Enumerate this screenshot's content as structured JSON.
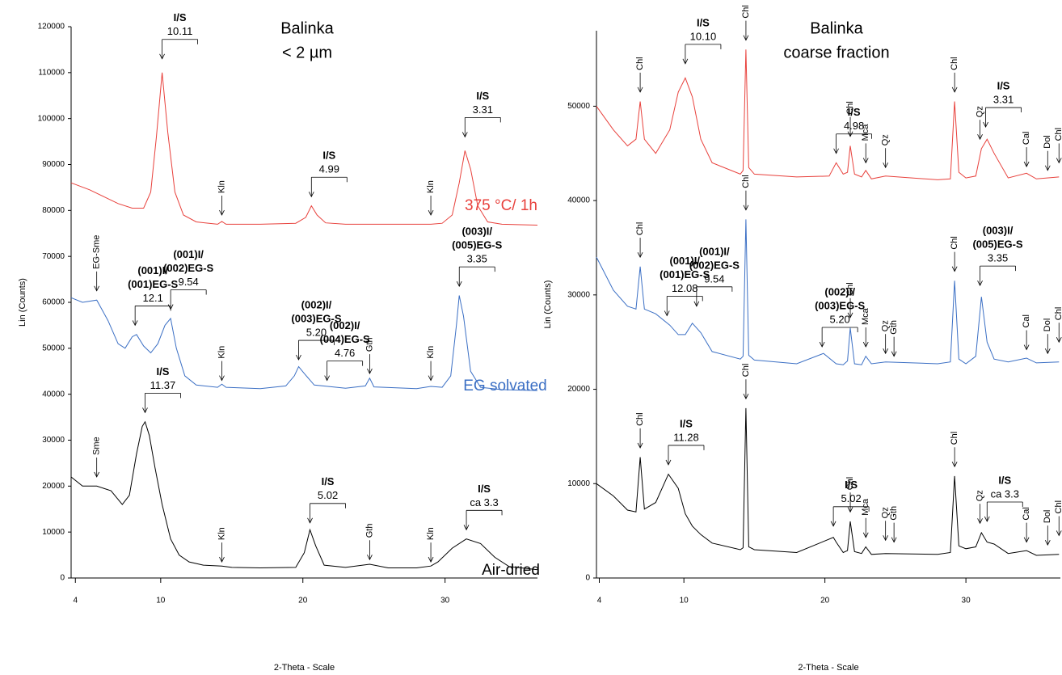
{
  "chart_data": [
    {
      "type": "line",
      "title": "Balinka",
      "subtitle": "< 2 µm",
      "xlabel": "2-Theta - Scale",
      "ylabel": "Lin (Counts)",
      "xlim": [
        3.7,
        36.5
      ],
      "ylim": [
        0,
        120000
      ],
      "xticks": [
        4,
        10,
        20,
        30
      ],
      "yticks": [
        0,
        10000,
        20000,
        30000,
        40000,
        50000,
        60000,
        70000,
        80000,
        90000,
        100000,
        110000,
        120000
      ],
      "series": [
        {
          "name": "375 °C/ 1h",
          "color": "#e8413c",
          "x": [
            3.7,
            5,
            6,
            7,
            8,
            8.8,
            9.3,
            9.7,
            10.1,
            10.5,
            11,
            11.6,
            12.5,
            14,
            14.3,
            14.6,
            17,
            19.5,
            20.2,
            20.6,
            21,
            21.6,
            23,
            26,
            29,
            29.8,
            30.5,
            31,
            31.4,
            31.8,
            32.3,
            33,
            34,
            36.5
          ],
          "values": [
            86000,
            84500,
            83000,
            81500,
            80500,
            80500,
            84000,
            96000,
            110000,
            97000,
            84000,
            79000,
            77500,
            77000,
            77600,
            77000,
            77000,
            77200,
            78500,
            81000,
            79000,
            77300,
            77000,
            77000,
            77000,
            77200,
            79000,
            86000,
            93000,
            89000,
            81000,
            77500,
            77000,
            76800
          ]
        },
        {
          "name": "EG solvated",
          "color": "#3b6fc4",
          "x": [
            3.7,
            4.5,
            5.5,
            6.3,
            7,
            7.5,
            8,
            8.3,
            8.8,
            9.3,
            9.8,
            10.3,
            10.7,
            11.1,
            11.7,
            12.5,
            14,
            14.3,
            14.6,
            17,
            18.8,
            19.4,
            19.7,
            20.1,
            20.8,
            23,
            24.4,
            24.7,
            25,
            28,
            29,
            29.8,
            30.4,
            30.8,
            31,
            31.3,
            31.8,
            32.5,
            34,
            36.5
          ],
          "values": [
            61000,
            60000,
            60500,
            56000,
            51000,
            50000,
            52500,
            53000,
            50500,
            49000,
            51000,
            55000,
            56500,
            50000,
            44000,
            42000,
            41500,
            42200,
            41500,
            41200,
            41800,
            44000,
            46000,
            44500,
            42000,
            41300,
            41800,
            43500,
            41600,
            41200,
            41700,
            41500,
            44000,
            55000,
            61500,
            57000,
            45000,
            41500,
            41000,
            40800
          ]
        },
        {
          "name": "Air-dried",
          "color": "#000000",
          "x": [
            3.7,
            4.5,
            5.5,
            6.5,
            7.3,
            7.8,
            8.3,
            8.7,
            8.9,
            9.2,
            9.6,
            10.1,
            10.7,
            11.3,
            12,
            13,
            14.3,
            15,
            17,
            19.5,
            20.1,
            20.5,
            20.9,
            21.5,
            23,
            24.7,
            26,
            28,
            29,
            29.5,
            30.5,
            31.5,
            32.5,
            33.5,
            34.5,
            36.5
          ],
          "values": [
            22000,
            20000,
            20000,
            19000,
            16000,
            18000,
            27000,
            33000,
            34000,
            31000,
            24000,
            16000,
            8500,
            5000,
            3500,
            2800,
            2600,
            2300,
            2200,
            2300,
            5500,
            10500,
            7000,
            2800,
            2300,
            3000,
            2200,
            2200,
            2600,
            3500,
            6500,
            8500,
            7500,
            4500,
            2500,
            1800
          ]
        }
      ],
      "annotations": [
        {
          "x": 10.1,
          "y": 113000,
          "lines": [
            "I/S",
            "10.11"
          ]
        },
        {
          "x": 14.3,
          "y": 79000,
          "text": "Kln"
        },
        {
          "x": 20.6,
          "y": 83000,
          "lines": [
            "I/S",
            "4.99"
          ]
        },
        {
          "x": 29.0,
          "y": 79000,
          "text": "Kln"
        },
        {
          "x": 31.4,
          "y": 96000,
          "lines": [
            "I/S",
            "3.31"
          ]
        },
        {
          "x": 5.5,
          "y": 62500,
          "text": "EG-Sme"
        },
        {
          "x": 8.2,
          "y": 55000,
          "lines": [
            "(001)I/",
            "(001)EG-S",
            "12.1"
          ]
        },
        {
          "x": 10.7,
          "y": 58500,
          "lines": [
            "(001)I/",
            "(002)EG-S",
            "9.54"
          ]
        },
        {
          "x": 14.3,
          "y": 43000,
          "text": "Kln"
        },
        {
          "x": 19.7,
          "y": 47500,
          "lines": [
            "(002)I/",
            "(003)EG-S",
            "5.20"
          ]
        },
        {
          "x": 21.7,
          "y": 43000,
          "lines": [
            "(002)I/",
            "(004)EG-S",
            "4.76"
          ]
        },
        {
          "x": 24.7,
          "y": 44500,
          "text": "Gth"
        },
        {
          "x": 29.0,
          "y": 43000,
          "text": "Kln"
        },
        {
          "x": 31.0,
          "y": 63500,
          "lines": [
            "(003)I/",
            "(005)EG-S",
            "3.35"
          ]
        },
        {
          "x": 8.9,
          "y": 36000,
          "lines": [
            "I/S",
            "11.37"
          ]
        },
        {
          "x": 5.5,
          "y": 22000,
          "text": "Sme"
        },
        {
          "x": 14.3,
          "y": 3500,
          "text": "Kln"
        },
        {
          "x": 20.5,
          "y": 12000,
          "lines": [
            "I/S",
            "5.02"
          ]
        },
        {
          "x": 24.7,
          "y": 4000,
          "text": "Gth"
        },
        {
          "x": 29.0,
          "y": 3500,
          "text": "Kln"
        },
        {
          "x": 31.5,
          "y": 10500,
          "lines": [
            "I/S",
            "ca 3.3"
          ]
        }
      ]
    },
    {
      "type": "line",
      "title": "Balinka",
      "subtitle": "coarse fraction",
      "xlabel": "2-Theta - Scale",
      "ylabel": "Lin (Counts)",
      "xlim": [
        3.8,
        36.7
      ],
      "ylim": [
        0,
        58000
      ],
      "xticks": [
        4,
        10,
        20,
        30
      ],
      "yticks": [
        0,
        10000,
        20000,
        30000,
        40000,
        50000
      ],
      "series": [
        {
          "color": "#e8413c",
          "x": [
            3.8,
            5,
            6,
            6.6,
            6.9,
            7.2,
            8,
            9,
            9.6,
            10.1,
            10.6,
            11.2,
            12,
            14,
            14.2,
            14.4,
            14.6,
            15,
            18,
            20.3,
            20.8,
            21.3,
            21.6,
            21.8,
            22.1,
            22.6,
            22.9,
            23.3,
            24.3,
            28,
            28.9,
            29.2,
            29.5,
            30,
            30.7,
            31.1,
            31.5,
            32,
            33,
            34.3,
            35,
            36.6
          ],
          "values": [
            50000,
            47500,
            45800,
            46500,
            50500,
            46500,
            45000,
            47500,
            51500,
            53000,
            51000,
            46500,
            44000,
            42800,
            43200,
            56000,
            43500,
            42800,
            42500,
            42600,
            44000,
            42800,
            43000,
            45800,
            42800,
            42500,
            43200,
            42300,
            42600,
            42200,
            42300,
            50500,
            43000,
            42400,
            42600,
            45500,
            46500,
            45000,
            42400,
            42900,
            42300,
            42500
          ]
        },
        {
          "color": "#3b6fc4",
          "x": [
            3.8,
            5,
            6,
            6.6,
            6.9,
            7.2,
            8,
            9,
            9.6,
            10.1,
            10.6,
            11.2,
            12,
            14,
            14.2,
            14.4,
            14.6,
            15,
            18,
            19.9,
            20.8,
            21.3,
            21.6,
            21.8,
            22.1,
            22.6,
            22.9,
            23.3,
            24.3,
            28,
            28.9,
            29.2,
            29.5,
            30,
            30.7,
            31.1,
            31.5,
            32,
            33,
            34.3,
            35,
            36.6
          ],
          "values": [
            34000,
            30500,
            28800,
            28500,
            33000,
            28500,
            28000,
            26800,
            25800,
            25800,
            27000,
            26000,
            24000,
            23200,
            23500,
            38000,
            23600,
            23100,
            22700,
            23800,
            22700,
            22600,
            23000,
            26500,
            22700,
            22600,
            23500,
            22700,
            22900,
            22700,
            22900,
            31500,
            23200,
            22700,
            23500,
            29800,
            25000,
            23200,
            22900,
            23300,
            22800,
            22900
          ]
        },
        {
          "color": "#000000",
          "x": [
            3.8,
            5,
            6,
            6.6,
            6.9,
            7.2,
            8,
            8.9,
            9.6,
            10.1,
            10.6,
            11.2,
            12,
            14,
            14.2,
            14.4,
            14.6,
            15,
            18,
            20.6,
            20.8,
            21.3,
            21.6,
            21.8,
            22.1,
            22.6,
            22.9,
            23.3,
            24.3,
            28,
            28.9,
            29.2,
            29.5,
            30,
            30.7,
            31.1,
            31.5,
            32,
            33,
            34.3,
            35,
            36.6
          ],
          "values": [
            10000,
            8700,
            7200,
            7000,
            12800,
            7300,
            8000,
            11000,
            9500,
            6800,
            5500,
            4600,
            3700,
            3000,
            3200,
            18000,
            3300,
            3000,
            2700,
            4300,
            3800,
            2700,
            2900,
            6000,
            2800,
            2600,
            3300,
            2500,
            2600,
            2500,
            2700,
            10800,
            3400,
            3100,
            3300,
            4800,
            3800,
            3600,
            2600,
            2900,
            2400,
            2500
          ]
        }
      ],
      "annotations": [
        {
          "x": 6.9,
          "y": 51500,
          "text": "Chl"
        },
        {
          "x": 10.1,
          "y": 54500,
          "lines": [
            "I/S",
            "10.10"
          ]
        },
        {
          "x": 14.4,
          "y": 57000,
          "text": "Chl"
        },
        {
          "x": 20.8,
          "y": 45000,
          "lines": [
            "I/S",
            "4.98"
          ]
        },
        {
          "x": 21.8,
          "y": 46800,
          "text": "Chl"
        },
        {
          "x": 22.9,
          "y": 44000,
          "text": "Mca"
        },
        {
          "x": 24.3,
          "y": 43500,
          "text": "Qz"
        },
        {
          "x": 29.2,
          "y": 51500,
          "text": "Chl"
        },
        {
          "x": 31.0,
          "y": 46500,
          "text": "Qz"
        },
        {
          "x": 31.4,
          "y": 47800,
          "lines": [
            "I/S",
            "3.31"
          ]
        },
        {
          "x": 34.3,
          "y": 43600,
          "text": "Cal"
        },
        {
          "x": 35.8,
          "y": 43200,
          "text": "Dol"
        },
        {
          "x": 36.6,
          "y": 44000,
          "text": "Chl"
        },
        {
          "x": 6.9,
          "y": 34000,
          "text": "Chl"
        },
        {
          "x": 8.8,
          "y": 27800,
          "lines": [
            "(001)I/",
            "(001)EG-S",
            "12.08"
          ]
        },
        {
          "x": 14.4,
          "y": 39000,
          "text": "Chl"
        },
        {
          "x": 10.9,
          "y": 28800,
          "lines": [
            "(001)I/",
            "(002)EG-S",
            "9.54"
          ]
        },
        {
          "x": 19.8,
          "y": 24500,
          "lines": [
            "(002)I/",
            "(003)EG-S",
            "5.20"
          ]
        },
        {
          "x": 21.8,
          "y": 27600,
          "text": "Chl"
        },
        {
          "x": 22.9,
          "y": 24500,
          "text": "Mca"
        },
        {
          "x": 24.3,
          "y": 23800,
          "text": "Qz"
        },
        {
          "x": 24.9,
          "y": 23500,
          "text": "Gth"
        },
        {
          "x": 29.2,
          "y": 32500,
          "text": "Chl"
        },
        {
          "x": 31.0,
          "y": 31000,
          "lines": [
            "(003)I/",
            "(005)EG-S",
            "3.35"
          ]
        },
        {
          "x": 34.3,
          "y": 24200,
          "text": "Cal"
        },
        {
          "x": 35.8,
          "y": 23800,
          "text": "Dol"
        },
        {
          "x": 36.6,
          "y": 25000,
          "text": "Chl"
        },
        {
          "x": 6.9,
          "y": 13800,
          "text": "Chl"
        },
        {
          "x": 8.9,
          "y": 12000,
          "lines": [
            "I/S",
            "11.28"
          ]
        },
        {
          "x": 14.4,
          "y": 19000,
          "text": "Chl"
        },
        {
          "x": 20.6,
          "y": 5500,
          "lines": [
            "I/S",
            "5.02"
          ]
        },
        {
          "x": 21.8,
          "y": 7000,
          "text": "Chl"
        },
        {
          "x": 22.9,
          "y": 4300,
          "text": "Mca"
        },
        {
          "x": 24.3,
          "y": 4000,
          "text": "Qz"
        },
        {
          "x": 24.9,
          "y": 3800,
          "text": "Gth"
        },
        {
          "x": 29.2,
          "y": 11800,
          "text": "Chl"
        },
        {
          "x": 31.0,
          "y": 5800,
          "text": "Qz"
        },
        {
          "x": 31.5,
          "y": 6000,
          "lines": [
            "I/S",
            "ca 3.3"
          ]
        },
        {
          "x": 34.3,
          "y": 3800,
          "text": "Cal"
        },
        {
          "x": 35.8,
          "y": 3500,
          "text": "Dol"
        },
        {
          "x": 36.6,
          "y": 4500,
          "text": "Chl"
        }
      ]
    }
  ]
}
